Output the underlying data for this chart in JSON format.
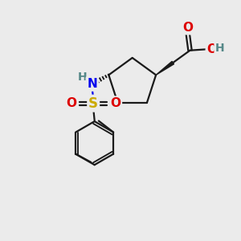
{
  "bg_color": "#ebebeb",
  "bond_color": "#1a1a1a",
  "bond_width": 1.6,
  "atom_colors": {
    "O": "#dd0000",
    "N": "#0000ee",
    "S": "#ccaa00",
    "H_acid": "#558888",
    "H_nh": "#558888",
    "C": "#1a1a1a"
  },
  "font_size": 10,
  "figsize": [
    3.0,
    3.0
  ],
  "dpi": 100
}
